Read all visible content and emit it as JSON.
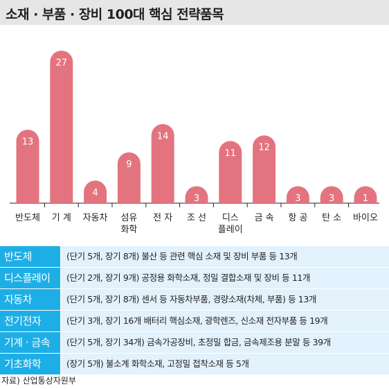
{
  "title": "소재 · 부품 · 장비 100대 핵심 전략품목",
  "colors": {
    "bar": "#e3747f",
    "table_header": "#1eaee6",
    "table_row": "#e2f1fb",
    "title_bg": "#e6e6e6"
  },
  "chart_data": {
    "type": "bar",
    "title": "소재 · 부품 · 장비 100대 핵심 전략품목",
    "categories": [
      "반도체",
      "기 계",
      "자동차",
      "섬유\n화학",
      "전 자",
      "조 선",
      "디스\n플레이",
      "금 속",
      "항 공",
      "탄 소",
      "바이오"
    ],
    "values": [
      13,
      27,
      4,
      9,
      14,
      3,
      11,
      12,
      3,
      3,
      1
    ],
    "data_labels": true,
    "grid": false,
    "legend": "none"
  },
  "table": [
    {
      "category": "반도체",
      "description": "(단기 5개, 장기 8개) 불산 등 관련 핵심 소재 및 장비 부품 등 13개"
    },
    {
      "category": "디스플레이",
      "description": "(단기 2개, 장기 9개) 공정용 화학소재, 정밀 결합소재 및 장비 등 11개"
    },
    {
      "category": "자동차",
      "description": "(단기 5개, 장기 8개) 센서 등 자동차부품, 경량소재(차체, 부품) 등 13개"
    },
    {
      "category": "전기전자",
      "description": "(단기 3개, 장기 16개 배터리 핵심소재, 광학렌즈, 신소재 전자부품 등 19개"
    },
    {
      "category": "기계 · 금속",
      "description": "(단기 5개, 장기 34개) 금속가공장비, 초정밀 합금, 금속제조용 분말 등 39개"
    },
    {
      "category": "기초화학",
      "description": "(장기 5개) 불소계 화학소재, 고정밀 접착소재 등 5개"
    }
  ],
  "source": "자료) 산업통상자원부"
}
